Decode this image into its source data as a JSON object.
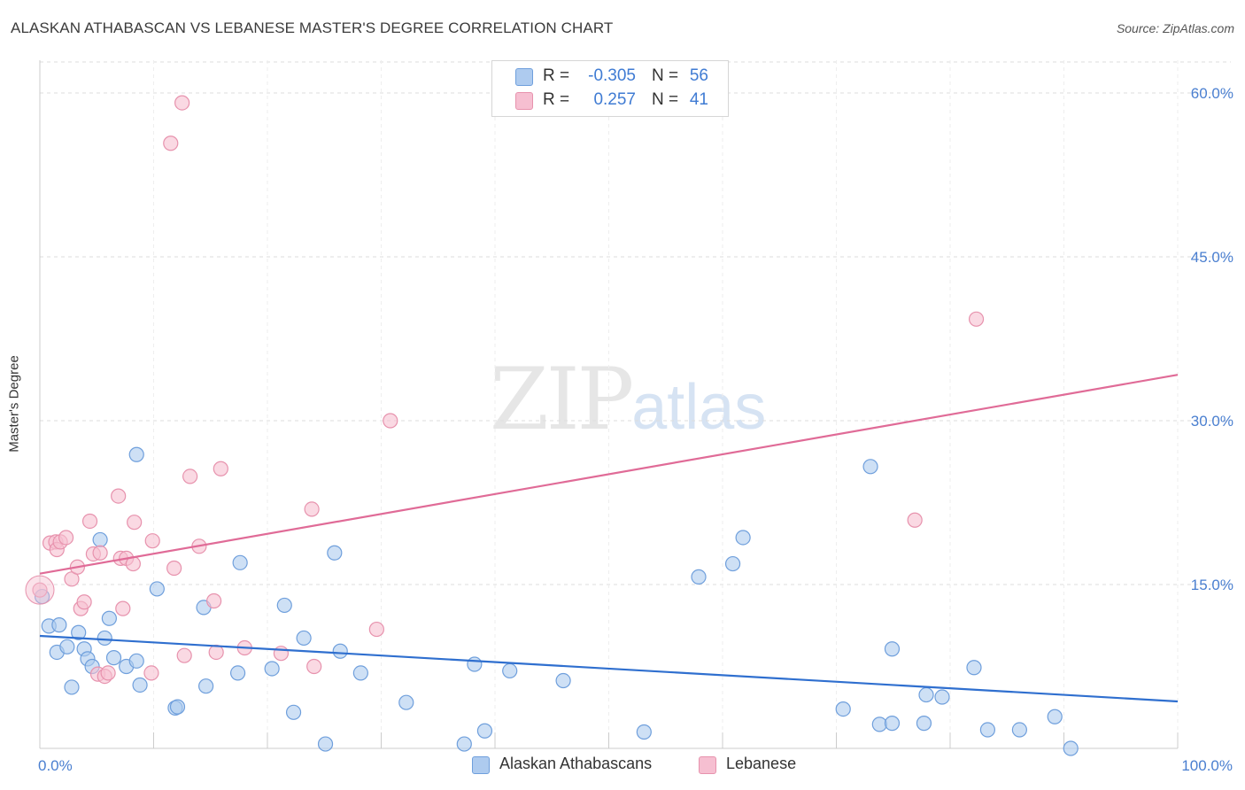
{
  "title": "ALASKAN ATHABASCAN VS LEBANESE MASTER'S DEGREE CORRELATION CHART",
  "source": "Source: ZipAtlas.com",
  "watermark": {
    "zip": "ZIP",
    "atlas": "atlas"
  },
  "colors": {
    "blue_fill": "#aecbef",
    "blue_stroke": "#6f9fdc",
    "blue_line": "#2f6fcf",
    "pink_fill": "#f6bfd1",
    "pink_stroke": "#e792ad",
    "pink_line": "#e06b97",
    "axis_label": "#4a7fd0",
    "grid": "#dddddd"
  },
  "legend": {
    "rows": [
      {
        "r_label": "R =",
        "r_value": "-0.305",
        "n_label": "N =",
        "n_value": "56"
      },
      {
        "r_label": "R =",
        "r_value": "0.257",
        "n_label": "N =",
        "n_value": "41"
      }
    ]
  },
  "bottom_legend": {
    "series1": "Alaskan Athabascans",
    "series2": "Lebanese"
  },
  "chart_data": {
    "type": "scatter",
    "title": "ALASKAN ATHABASCAN VS LEBANESE MASTER'S DEGREE CORRELATION CHART",
    "xlabel": "",
    "ylabel": "Master's Degree",
    "xlim": [
      0,
      100
    ],
    "ylim": [
      0,
      63
    ],
    "x_tick_labels": [
      {
        "value": 0,
        "label": "0.0%"
      },
      {
        "value": 100,
        "label": "100.0%"
      }
    ],
    "y_tick_labels": [
      {
        "value": 15,
        "label": "15.0%"
      },
      {
        "value": 30,
        "label": "30.0%"
      },
      {
        "value": 45,
        "label": "45.0%"
      },
      {
        "value": 60,
        "label": "60.0%"
      }
    ],
    "series": [
      {
        "name": "Alaskan Athabascans",
        "r": -0.305,
        "n": 56,
        "trend": {
          "x": [
            0,
            100
          ],
          "y": [
            10.3,
            4.3
          ]
        },
        "points": [
          [
            0.2,
            13.9
          ],
          [
            0.8,
            11.2
          ],
          [
            1.7,
            11.3
          ],
          [
            1.5,
            8.8
          ],
          [
            2.4,
            9.3
          ],
          [
            2.8,
            5.6
          ],
          [
            3.4,
            10.6
          ],
          [
            3.9,
            9.1
          ],
          [
            4.2,
            8.2
          ],
          [
            4.6,
            7.5
          ],
          [
            5.3,
            19.1
          ],
          [
            5.7,
            10.1
          ],
          [
            6.1,
            11.9
          ],
          [
            6.5,
            8.3
          ],
          [
            7.6,
            7.5
          ],
          [
            8.5,
            8.0
          ],
          [
            8.8,
            5.8
          ],
          [
            8.5,
            26.9
          ],
          [
            10.3,
            14.6
          ],
          [
            11.9,
            3.7
          ],
          [
            12.1,
            3.8
          ],
          [
            14.4,
            12.9
          ],
          [
            14.6,
            5.7
          ],
          [
            17.4,
            6.9
          ],
          [
            17.6,
            17.0
          ],
          [
            20.4,
            7.3
          ],
          [
            21.5,
            13.1
          ],
          [
            22.3,
            3.3
          ],
          [
            23.2,
            10.1
          ],
          [
            25.1,
            0.4
          ],
          [
            25.9,
            17.9
          ],
          [
            26.4,
            8.9
          ],
          [
            28.2,
            6.9
          ],
          [
            32.2,
            4.2
          ],
          [
            37.3,
            0.4
          ],
          [
            38.2,
            7.7
          ],
          [
            39.1,
            1.6
          ],
          [
            41.3,
            7.1
          ],
          [
            46.0,
            6.2
          ],
          [
            53.1,
            1.5
          ],
          [
            57.9,
            15.7
          ],
          [
            60.9,
            16.9
          ],
          [
            61.8,
            19.3
          ],
          [
            70.6,
            3.6
          ],
          [
            73.0,
            25.8
          ],
          [
            73.8,
            2.2
          ],
          [
            74.9,
            2.3
          ],
          [
            74.9,
            9.1
          ],
          [
            77.7,
            2.3
          ],
          [
            77.9,
            4.9
          ],
          [
            79.3,
            4.7
          ],
          [
            82.1,
            7.4
          ],
          [
            83.3,
            1.7
          ],
          [
            86.1,
            1.7
          ],
          [
            89.2,
            2.9
          ],
          [
            90.6,
            0.0
          ]
        ]
      },
      {
        "name": "Lebanese",
        "r": 0.257,
        "n": 41,
        "trend": {
          "x": [
            0,
            100
          ],
          "y": [
            16.0,
            34.2
          ]
        },
        "points": [
          [
            0.0,
            14.5
          ],
          [
            0.9,
            18.8
          ],
          [
            1.4,
            18.9
          ],
          [
            1.5,
            18.2
          ],
          [
            1.8,
            18.9
          ],
          [
            2.3,
            19.3
          ],
          [
            2.8,
            15.5
          ],
          [
            3.3,
            16.6
          ],
          [
            3.6,
            12.8
          ],
          [
            3.9,
            13.4
          ],
          [
            4.4,
            20.8
          ],
          [
            4.7,
            17.8
          ],
          [
            5.3,
            17.9
          ],
          [
            5.1,
            6.8
          ],
          [
            5.7,
            6.6
          ],
          [
            6.0,
            6.9
          ],
          [
            6.9,
            23.1
          ],
          [
            7.1,
            17.4
          ],
          [
            7.6,
            17.4
          ],
          [
            7.3,
            12.8
          ],
          [
            8.3,
            20.7
          ],
          [
            8.2,
            16.9
          ],
          [
            9.8,
            6.9
          ],
          [
            9.9,
            19.0
          ],
          [
            11.5,
            55.4
          ],
          [
            11.8,
            16.5
          ],
          [
            12.5,
            59.1
          ],
          [
            12.7,
            8.5
          ],
          [
            13.2,
            24.9
          ],
          [
            14.0,
            18.5
          ],
          [
            15.3,
            13.5
          ],
          [
            15.5,
            8.8
          ],
          [
            15.9,
            25.6
          ],
          [
            18.0,
            9.2
          ],
          [
            21.2,
            8.7
          ],
          [
            23.9,
            21.9
          ],
          [
            24.1,
            7.5
          ],
          [
            29.6,
            10.9
          ],
          [
            30.8,
            30.0
          ],
          [
            76.9,
            20.9
          ],
          [
            82.3,
            39.3
          ]
        ]
      }
    ]
  }
}
